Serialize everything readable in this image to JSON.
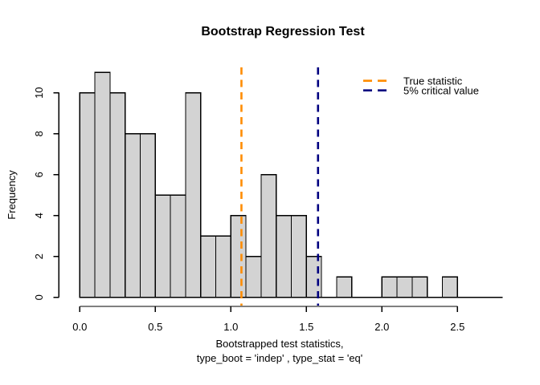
{
  "chart_data": {
    "type": "bar",
    "subtype": "histogram",
    "title": "Bootstrap Regression Test",
    "xlabel_line1": "Bootstrapped test statistics,",
    "xlabel_line2": "type_boot = 'indep' , type_stat = 'eq'",
    "ylabel": "Frequency",
    "bin_start": 0.0,
    "bin_width": 0.1,
    "counts": [
      10,
      11,
      10,
      8,
      8,
      5,
      5,
      10,
      3,
      3,
      4,
      2,
      6,
      4,
      4,
      2,
      0,
      1,
      0,
      0,
      1,
      1,
      1,
      0,
      1,
      0,
      0,
      0
    ],
    "x_tick_labels": [
      "0.0",
      "0.5",
      "1.0",
      "1.5",
      "2.0",
      "2.5"
    ],
    "x_tick_values": [
      0.0,
      0.5,
      1.0,
      1.5,
      2.0,
      2.5
    ],
    "y_tick_labels": [
      "0",
      "2",
      "4",
      "6",
      "8",
      "10"
    ],
    "y_tick_values": [
      0,
      2,
      4,
      6,
      8,
      10
    ],
    "xlim": [
      0.0,
      2.8
    ],
    "ylim": [
      0,
      11
    ],
    "grid": false,
    "legend_position": "top-right",
    "bar_fill": "#d3d3d3",
    "bar_stroke": "#000000",
    "vlines": [
      {
        "name": "true-statistic-line",
        "label": "True statistic",
        "value": 1.07,
        "color": "#ff8c00",
        "style": "dashed"
      },
      {
        "name": "critical-value-line",
        "label": "5% critical value",
        "value": 1.577,
        "color": "#000080",
        "style": "dashed"
      }
    ]
  }
}
